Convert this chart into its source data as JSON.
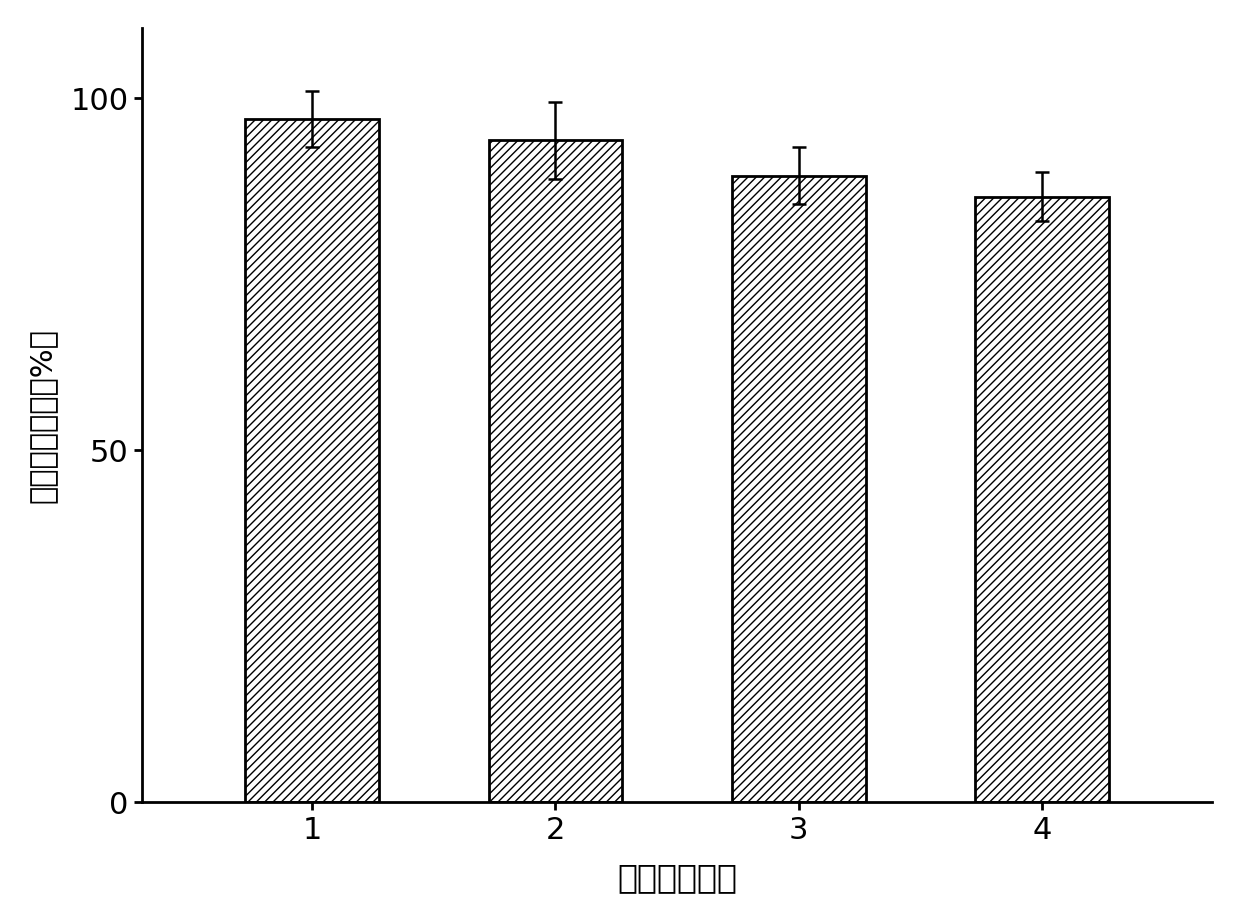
{
  "categories": [
    "1",
    "2",
    "3",
    "4"
  ],
  "values": [
    97.0,
    94.0,
    89.0,
    86.0
  ],
  "errors": [
    4.0,
    5.5,
    4.0,
    3.5
  ],
  "bar_facecolor": "#ffffff",
  "bar_edgecolor": "#000000",
  "hatch": "////",
  "xlabel": "循环利用次数",
  "ylabel": "相对细胞活力（%）",
  "ylim": [
    0,
    110
  ],
  "yticks": [
    0,
    50,
    100
  ],
  "xlim": [
    0.3,
    4.7
  ],
  "bar_width": 0.55,
  "xlabel_fontsize": 24,
  "ylabel_fontsize": 22,
  "tick_fontsize": 22,
  "capsize": 5,
  "background_color": "#ffffff",
  "linewidth": 2.0,
  "error_linewidth": 1.8
}
